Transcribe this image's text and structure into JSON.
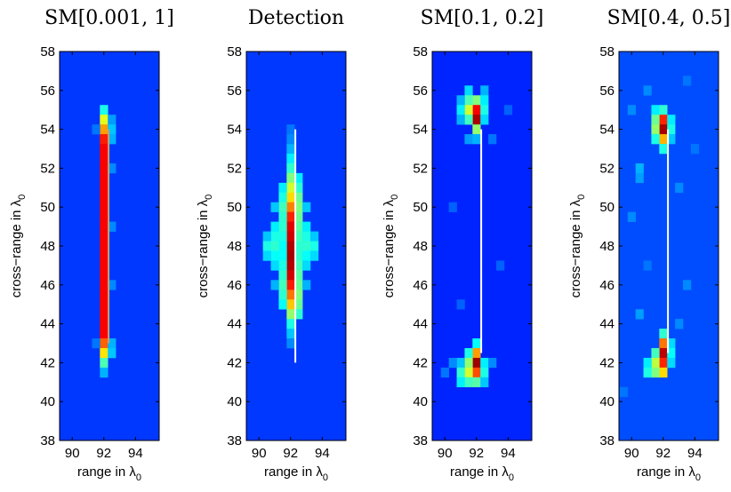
{
  "chart_data": [
    {
      "type": "heatmap",
      "title": "SM[0.001, 1]",
      "xlabel": "range in λ",
      "xlabel_sub": "0",
      "ylabel": "cross−range in λ",
      "ylabel_sub": "0",
      "x_ticks": [
        90,
        92,
        94
      ],
      "y_ticks": [
        38,
        40,
        42,
        44,
        46,
        48,
        50,
        52,
        54,
        56,
        58
      ],
      "xlim": [
        89.2,
        95.5
      ],
      "ylim": [
        38,
        58
      ],
      "cell_size": [
        0.5,
        0.5
      ],
      "background_level": 0.18,
      "cells": [
        {
          "x": 92.0,
          "y": 55.0,
          "v": 0.4
        },
        {
          "x": 92.0,
          "y": 54.5,
          "v": 0.6
        },
        {
          "x": 92.0,
          "y": 54.0,
          "v": 0.72
        },
        {
          "x": 92.0,
          "y": 53.5,
          "v": 0.85
        },
        {
          "x": 92.0,
          "y": 53.0,
          "v": 0.88
        },
        {
          "x": 92.0,
          "y": 52.5,
          "v": 0.88
        },
        {
          "x": 92.0,
          "y": 52.0,
          "v": 0.88
        },
        {
          "x": 92.0,
          "y": 51.5,
          "v": 0.88
        },
        {
          "x": 92.0,
          "y": 51.0,
          "v": 0.88
        },
        {
          "x": 92.0,
          "y": 50.5,
          "v": 0.88
        },
        {
          "x": 92.0,
          "y": 50.0,
          "v": 0.88
        },
        {
          "x": 92.0,
          "y": 49.5,
          "v": 0.88
        },
        {
          "x": 92.0,
          "y": 49.0,
          "v": 0.88
        },
        {
          "x": 92.0,
          "y": 48.5,
          "v": 0.88
        },
        {
          "x": 92.0,
          "y": 48.0,
          "v": 0.88
        },
        {
          "x": 92.0,
          "y": 47.5,
          "v": 0.88
        },
        {
          "x": 92.0,
          "y": 47.0,
          "v": 0.88
        },
        {
          "x": 92.0,
          "y": 46.5,
          "v": 0.88
        },
        {
          "x": 92.0,
          "y": 46.0,
          "v": 0.88
        },
        {
          "x": 92.0,
          "y": 45.5,
          "v": 0.88
        },
        {
          "x": 92.0,
          "y": 45.0,
          "v": 0.88
        },
        {
          "x": 92.0,
          "y": 44.5,
          "v": 0.88
        },
        {
          "x": 92.0,
          "y": 44.0,
          "v": 0.88
        },
        {
          "x": 92.0,
          "y": 43.5,
          "v": 0.88
        },
        {
          "x": 92.0,
          "y": 43.0,
          "v": 0.78
        },
        {
          "x": 92.0,
          "y": 42.5,
          "v": 0.65
        },
        {
          "x": 92.0,
          "y": 42.0,
          "v": 0.45
        },
        {
          "x": 92.0,
          "y": 41.5,
          "v": 0.3
        },
        {
          "x": 92.5,
          "y": 54.5,
          "v": 0.28
        },
        {
          "x": 92.5,
          "y": 54.0,
          "v": 0.32
        },
        {
          "x": 92.5,
          "y": 53.5,
          "v": 0.3
        },
        {
          "x": 92.5,
          "y": 52.0,
          "v": 0.26
        },
        {
          "x": 92.5,
          "y": 49.0,
          "v": 0.26
        },
        {
          "x": 92.5,
          "y": 46.0,
          "v": 0.26
        },
        {
          "x": 92.5,
          "y": 43.0,
          "v": 0.3
        },
        {
          "x": 92.5,
          "y": 42.5,
          "v": 0.32
        },
        {
          "x": 91.5,
          "y": 54.0,
          "v": 0.24
        },
        {
          "x": 91.5,
          "y": 43.0,
          "v": 0.24
        }
      ],
      "overlay_line": {
        "x": 92.3,
        "y_from": 43.0,
        "y_to": 54.0,
        "color": "#c8a070"
      }
    },
    {
      "type": "heatmap",
      "title": "Detection",
      "xlabel": "range in λ",
      "xlabel_sub": "0",
      "ylabel": "cross−range in λ",
      "ylabel_sub": "0",
      "x_ticks": [
        90,
        92,
        94
      ],
      "y_ticks": [
        38,
        40,
        42,
        44,
        46,
        48,
        50,
        52,
        54,
        56,
        58
      ],
      "xlim": [
        89.2,
        95.5
      ],
      "ylim": [
        38,
        58
      ],
      "cell_size": [
        0.5,
        0.5
      ],
      "background_level": 0.18,
      "cells": [
        {
          "x": 92.0,
          "y": 53.0,
          "v": 0.3
        },
        {
          "x": 92.0,
          "y": 52.5,
          "v": 0.36
        },
        {
          "x": 92.0,
          "y": 52.0,
          "v": 0.42
        },
        {
          "x": 92.0,
          "y": 51.5,
          "v": 0.5
        },
        {
          "x": 92.0,
          "y": 51.0,
          "v": 0.58
        },
        {
          "x": 92.0,
          "y": 50.5,
          "v": 0.66
        },
        {
          "x": 92.0,
          "y": 50.0,
          "v": 0.75
        },
        {
          "x": 92.0,
          "y": 49.5,
          "v": 0.84
        },
        {
          "x": 92.0,
          "y": 49.0,
          "v": 0.9
        },
        {
          "x": 92.0,
          "y": 48.5,
          "v": 0.92
        },
        {
          "x": 92.0,
          "y": 48.0,
          "v": 0.95
        },
        {
          "x": 92.0,
          "y": 47.5,
          "v": 0.96
        },
        {
          "x": 92.0,
          "y": 47.0,
          "v": 0.95
        },
        {
          "x": 92.0,
          "y": 46.5,
          "v": 0.92
        },
        {
          "x": 92.0,
          "y": 46.0,
          "v": 0.85
        },
        {
          "x": 92.0,
          "y": 45.5,
          "v": 0.76
        },
        {
          "x": 92.0,
          "y": 45.0,
          "v": 0.68
        },
        {
          "x": 92.0,
          "y": 44.5,
          "v": 0.52
        },
        {
          "x": 92.0,
          "y": 44.0,
          "v": 0.4
        },
        {
          "x": 92.0,
          "y": 43.5,
          "v": 0.32
        },
        {
          "x": 92.5,
          "y": 51.5,
          "v": 0.36
        },
        {
          "x": 92.5,
          "y": 51.0,
          "v": 0.42
        },
        {
          "x": 92.5,
          "y": 50.5,
          "v": 0.48
        },
        {
          "x": 92.5,
          "y": 50.0,
          "v": 0.5
        },
        {
          "x": 92.5,
          "y": 49.5,
          "v": 0.48
        },
        {
          "x": 92.5,
          "y": 49.0,
          "v": 0.46
        },
        {
          "x": 92.5,
          "y": 48.5,
          "v": 0.44
        },
        {
          "x": 92.5,
          "y": 48.0,
          "v": 0.42
        },
        {
          "x": 92.5,
          "y": 47.5,
          "v": 0.42
        },
        {
          "x": 92.5,
          "y": 47.0,
          "v": 0.44
        },
        {
          "x": 92.5,
          "y": 46.5,
          "v": 0.46
        },
        {
          "x": 92.5,
          "y": 46.0,
          "v": 0.48
        },
        {
          "x": 92.5,
          "y": 45.5,
          "v": 0.5
        },
        {
          "x": 92.5,
          "y": 45.0,
          "v": 0.48
        },
        {
          "x": 92.5,
          "y": 44.5,
          "v": 0.42
        },
        {
          "x": 91.5,
          "y": 51.0,
          "v": 0.36
        },
        {
          "x": 91.5,
          "y": 50.5,
          "v": 0.4
        },
        {
          "x": 91.5,
          "y": 50.0,
          "v": 0.44
        },
        {
          "x": 91.5,
          "y": 49.5,
          "v": 0.42
        },
        {
          "x": 91.5,
          "y": 49.0,
          "v": 0.42
        },
        {
          "x": 91.5,
          "y": 48.5,
          "v": 0.4
        },
        {
          "x": 91.5,
          "y": 48.0,
          "v": 0.38
        },
        {
          "x": 91.5,
          "y": 47.5,
          "v": 0.38
        },
        {
          "x": 91.5,
          "y": 47.0,
          "v": 0.4
        },
        {
          "x": 91.5,
          "y": 46.5,
          "v": 0.42
        },
        {
          "x": 91.5,
          "y": 46.0,
          "v": 0.44
        },
        {
          "x": 91.5,
          "y": 45.5,
          "v": 0.42
        },
        {
          "x": 91.5,
          "y": 45.0,
          "v": 0.38
        },
        {
          "x": 91.0,
          "y": 50.0,
          "v": 0.32
        },
        {
          "x": 91.0,
          "y": 49.0,
          "v": 0.36
        },
        {
          "x": 91.0,
          "y": 48.5,
          "v": 0.4
        },
        {
          "x": 91.0,
          "y": 48.0,
          "v": 0.42
        },
        {
          "x": 91.0,
          "y": 47.5,
          "v": 0.38
        },
        {
          "x": 91.0,
          "y": 47.0,
          "v": 0.34
        },
        {
          "x": 91.0,
          "y": 46.0,
          "v": 0.3
        },
        {
          "x": 90.5,
          "y": 48.5,
          "v": 0.32
        },
        {
          "x": 90.5,
          "y": 48.0,
          "v": 0.4
        },
        {
          "x": 90.5,
          "y": 47.5,
          "v": 0.34
        },
        {
          "x": 93.0,
          "y": 50.0,
          "v": 0.32
        },
        {
          "x": 93.0,
          "y": 49.0,
          "v": 0.36
        },
        {
          "x": 93.0,
          "y": 48.5,
          "v": 0.4
        },
        {
          "x": 93.0,
          "y": 48.0,
          "v": 0.42
        },
        {
          "x": 93.0,
          "y": 47.5,
          "v": 0.38
        },
        {
          "x": 93.0,
          "y": 47.0,
          "v": 0.34
        },
        {
          "x": 93.0,
          "y": 46.0,
          "v": 0.3
        },
        {
          "x": 93.5,
          "y": 48.5,
          "v": 0.32
        },
        {
          "x": 93.5,
          "y": 48.0,
          "v": 0.4
        },
        {
          "x": 93.5,
          "y": 47.5,
          "v": 0.34
        },
        {
          "x": 92.0,
          "y": 54.0,
          "v": 0.24
        },
        {
          "x": 92.0,
          "y": 53.5,
          "v": 0.26
        },
        {
          "x": 92.0,
          "y": 43.0,
          "v": 0.26
        }
      ],
      "overlay_line": {
        "x": 92.3,
        "y_from": 42.0,
        "y_to": 54.0,
        "color": "#ffffff"
      }
    },
    {
      "type": "heatmap",
      "title": "SM[0.1, 0.2]",
      "xlabel": "range in λ",
      "xlabel_sub": "0",
      "ylabel": "cross−range in λ",
      "ylabel_sub": "0",
      "x_ticks": [
        90,
        92,
        94
      ],
      "y_ticks": [
        38,
        40,
        42,
        44,
        46,
        48,
        50,
        52,
        54,
        56,
        58
      ],
      "xlim": [
        89.2,
        95.5
      ],
      "ylim": [
        38,
        58
      ],
      "cell_size": [
        0.5,
        0.5
      ],
      "background_level": 0.16,
      "cells": [
        {
          "x": 92.0,
          "y": 55.5,
          "v": 0.5
        },
        {
          "x": 92.0,
          "y": 55.0,
          "v": 0.88
        },
        {
          "x": 92.0,
          "y": 54.5,
          "v": 0.96
        },
        {
          "x": 92.0,
          "y": 54.0,
          "v": 0.52
        },
        {
          "x": 91.5,
          "y": 56.0,
          "v": 0.34
        },
        {
          "x": 91.5,
          "y": 55.5,
          "v": 0.45
        },
        {
          "x": 91.5,
          "y": 55.0,
          "v": 0.58
        },
        {
          "x": 91.5,
          "y": 54.5,
          "v": 0.44
        },
        {
          "x": 91.0,
          "y": 55.5,
          "v": 0.3
        },
        {
          "x": 91.0,
          "y": 55.0,
          "v": 0.36
        },
        {
          "x": 91.0,
          "y": 54.5,
          "v": 0.3
        },
        {
          "x": 92.5,
          "y": 56.0,
          "v": 0.3
        },
        {
          "x": 92.5,
          "y": 55.5,
          "v": 0.36
        },
        {
          "x": 92.5,
          "y": 55.0,
          "v": 0.4
        },
        {
          "x": 92.5,
          "y": 54.5,
          "v": 0.34
        },
        {
          "x": 91.5,
          "y": 53.5,
          "v": 0.28
        },
        {
          "x": 92.0,
          "y": 53.5,
          "v": 0.3
        },
        {
          "x": 92.0,
          "y": 43.0,
          "v": 0.38
        },
        {
          "x": 92.0,
          "y": 42.5,
          "v": 0.72
        },
        {
          "x": 92.0,
          "y": 42.0,
          "v": 0.97
        },
        {
          "x": 92.0,
          "y": 41.5,
          "v": 0.8
        },
        {
          "x": 92.0,
          "y": 41.0,
          "v": 0.46
        },
        {
          "x": 91.5,
          "y": 42.5,
          "v": 0.4
        },
        {
          "x": 91.5,
          "y": 42.0,
          "v": 0.52
        },
        {
          "x": 91.5,
          "y": 41.5,
          "v": 0.58
        },
        {
          "x": 91.5,
          "y": 41.0,
          "v": 0.44
        },
        {
          "x": 91.0,
          "y": 42.0,
          "v": 0.32
        },
        {
          "x": 91.0,
          "y": 41.5,
          "v": 0.42
        },
        {
          "x": 91.0,
          "y": 41.0,
          "v": 0.36
        },
        {
          "x": 92.5,
          "y": 42.0,
          "v": 0.36
        },
        {
          "x": 92.5,
          "y": 41.5,
          "v": 0.4
        },
        {
          "x": 92.5,
          "y": 41.0,
          "v": 0.32
        },
        {
          "x": 90.5,
          "y": 42.0,
          "v": 0.26
        },
        {
          "x": 90.0,
          "y": 41.5,
          "v": 0.24
        },
        {
          "x": 93.0,
          "y": 42.0,
          "v": 0.26
        },
        {
          "x": 93.0,
          "y": 53.5,
          "v": 0.24
        },
        {
          "x": 90.5,
          "y": 50.0,
          "v": 0.22
        },
        {
          "x": 93.5,
          "y": 47.0,
          "v": 0.22
        },
        {
          "x": 91.0,
          "y": 45.0,
          "v": 0.22
        },
        {
          "x": 94.0,
          "y": 55.0,
          "v": 0.22
        }
      ],
      "overlay_line": {
        "x": 92.3,
        "y_from": 42.5,
        "y_to": 54.0,
        "color": "#ffffff"
      }
    },
    {
      "type": "heatmap",
      "title": "SM[0.4, 0.5]",
      "xlabel": "range in λ",
      "xlabel_sub": "0",
      "ylabel": "cross−range in λ",
      "ylabel_sub": "0",
      "x_ticks": [
        90,
        92,
        94
      ],
      "y_ticks": [
        38,
        40,
        42,
        44,
        46,
        48,
        50,
        52,
        54,
        56,
        58
      ],
      "xlim": [
        89.2,
        95.5
      ],
      "ylim": [
        38,
        58
      ],
      "cell_size": [
        0.5,
        0.5
      ],
      "background_level": 0.2,
      "cells": [
        {
          "x": 92.0,
          "y": 55.0,
          "v": 0.42
        },
        {
          "x": 92.0,
          "y": 54.5,
          "v": 0.84
        },
        {
          "x": 92.0,
          "y": 54.0,
          "v": 0.96
        },
        {
          "x": 92.0,
          "y": 53.5,
          "v": 0.7
        },
        {
          "x": 92.0,
          "y": 53.0,
          "v": 0.4
        },
        {
          "x": 91.5,
          "y": 55.0,
          "v": 0.36
        },
        {
          "x": 91.5,
          "y": 54.5,
          "v": 0.48
        },
        {
          "x": 91.5,
          "y": 54.0,
          "v": 0.52
        },
        {
          "x": 91.5,
          "y": 53.5,
          "v": 0.4
        },
        {
          "x": 92.5,
          "y": 54.5,
          "v": 0.36
        },
        {
          "x": 92.5,
          "y": 54.0,
          "v": 0.4
        },
        {
          "x": 92.5,
          "y": 53.5,
          "v": 0.32
        },
        {
          "x": 92.0,
          "y": 43.5,
          "v": 0.42
        },
        {
          "x": 92.0,
          "y": 43.0,
          "v": 0.76
        },
        {
          "x": 92.0,
          "y": 42.5,
          "v": 0.94
        },
        {
          "x": 92.0,
          "y": 42.0,
          "v": 0.84
        },
        {
          "x": 92.0,
          "y": 41.5,
          "v": 0.66
        },
        {
          "x": 91.5,
          "y": 42.5,
          "v": 0.44
        },
        {
          "x": 91.5,
          "y": 42.0,
          "v": 0.56
        },
        {
          "x": 91.5,
          "y": 41.5,
          "v": 0.5
        },
        {
          "x": 91.0,
          "y": 42.0,
          "v": 0.36
        },
        {
          "x": 91.0,
          "y": 41.5,
          "v": 0.4
        },
        {
          "x": 92.5,
          "y": 43.0,
          "v": 0.34
        },
        {
          "x": 92.5,
          "y": 42.5,
          "v": 0.38
        },
        {
          "x": 92.5,
          "y": 42.0,
          "v": 0.34
        },
        {
          "x": 90.5,
          "y": 52.0,
          "v": 0.3
        },
        {
          "x": 90.5,
          "y": 51.5,
          "v": 0.28
        },
        {
          "x": 90.0,
          "y": 49.5,
          "v": 0.26
        },
        {
          "x": 93.0,
          "y": 51.0,
          "v": 0.26
        },
        {
          "x": 93.5,
          "y": 46.0,
          "v": 0.26
        },
        {
          "x": 91.0,
          "y": 47.0,
          "v": 0.24
        },
        {
          "x": 90.5,
          "y": 44.5,
          "v": 0.28
        },
        {
          "x": 93.0,
          "y": 44.0,
          "v": 0.26
        },
        {
          "x": 94.0,
          "y": 53.0,
          "v": 0.24
        },
        {
          "x": 89.5,
          "y": 40.5,
          "v": 0.24
        },
        {
          "x": 93.5,
          "y": 56.5,
          "v": 0.24
        },
        {
          "x": 91.0,
          "y": 56.0,
          "v": 0.26
        },
        {
          "x": 90.0,
          "y": 55.0,
          "v": 0.26
        }
      ],
      "overlay_line": {
        "x": 92.3,
        "y_from": 42.5,
        "y_to": 54.0,
        "color": "#ffffff"
      }
    }
  ]
}
